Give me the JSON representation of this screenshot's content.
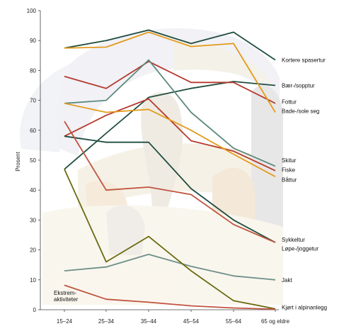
{
  "chart_data": {
    "type": "line",
    "ylabel": "Prosent",
    "xlabel": "",
    "ylim": [
      0,
      100
    ],
    "yticks": [
      0,
      10,
      20,
      30,
      40,
      50,
      60,
      70,
      80,
      90,
      100
    ],
    "categories": [
      "15–24",
      "25–34",
      "35–44",
      "45–54",
      "55–64",
      "65 og eldre"
    ],
    "grid": false,
    "series": [
      {
        "name": "Kortere spasertur",
        "color": "#1f4d3f",
        "values": [
          87.5,
          90,
          93.5,
          89,
          92.8,
          83.5
        ]
      },
      {
        "name": "Bær-/sopptur",
        "color": "#1f4d3f",
        "values": [
          47,
          59,
          71,
          74,
          76.3,
          75
        ]
      },
      {
        "name": "Fottur",
        "color": "#b53a2e",
        "values": [
          78,
          74,
          83,
          76,
          76,
          69
        ]
      },
      {
        "name": "Bade-/sole seg",
        "color": "#e39b1c",
        "values": [
          87.5,
          87.8,
          92.8,
          88,
          89,
          66
        ]
      },
      {
        "name": "Skitur",
        "color": "#5e8a80",
        "values": [
          69,
          70,
          83.5,
          66,
          54,
          48
        ]
      },
      {
        "name": "Fiske",
        "color": "#b53a2e",
        "values": [
          58,
          65,
          70.5,
          56.5,
          53,
          46.5
        ]
      },
      {
        "name": "Båttur",
        "color": "#e39b1c",
        "values": [
          69,
          66,
          67,
          60,
          52,
          44.5
        ]
      },
      {
        "name": "Sykkeltur",
        "color": "#1f4d3f",
        "values": [
          58,
          56,
          56,
          40.5,
          30,
          22.5
        ]
      },
      {
        "name": "Løpe-/joggetur",
        "color": "#c0543f",
        "values": [
          63,
          40,
          41,
          38.5,
          28.5,
          22.5
        ]
      },
      {
        "name": "Jakt",
        "color": "#6e9089",
        "values": [
          13,
          14.3,
          18.5,
          14.5,
          11.3,
          10
        ]
      },
      {
        "name": "Kjørt i alpinanlegg",
        "color": "#6b6a10",
        "values": [
          47,
          16,
          24.5,
          13,
          3,
          0.3
        ]
      },
      {
        "name": "Ekstrem-aktiviteter",
        "color": "#c0543f",
        "values": [
          8.2,
          3.5,
          2.5,
          1.3,
          0.6,
          0.2
        ]
      }
    ],
    "labels": [
      {
        "text": "Kortere spasertur",
        "y": 83.5
      },
      {
        "text": "Bær-/sopptur",
        "y": 75
      },
      {
        "text": "Fottur",
        "y": 69.5
      },
      {
        "text": "Bade-/sole seg",
        "y": 66.5
      },
      {
        "text": "Skitur",
        "y": 50
      },
      {
        "text": "Fiske",
        "y": 46.8
      },
      {
        "text": "Båttur",
        "y": 43.5
      },
      {
        "text": "Sykkeltur",
        "y": 23.5
      },
      {
        "text": "Løpe-/joggetur",
        "y": 20.5
      },
      {
        "text": "Jakt",
        "y": 10
      },
      {
        "text": "Kjørt i alpinanlegg",
        "y": 0.8
      }
    ],
    "extreme_label": [
      "Ekstrem-",
      "aktiviteter"
    ]
  }
}
